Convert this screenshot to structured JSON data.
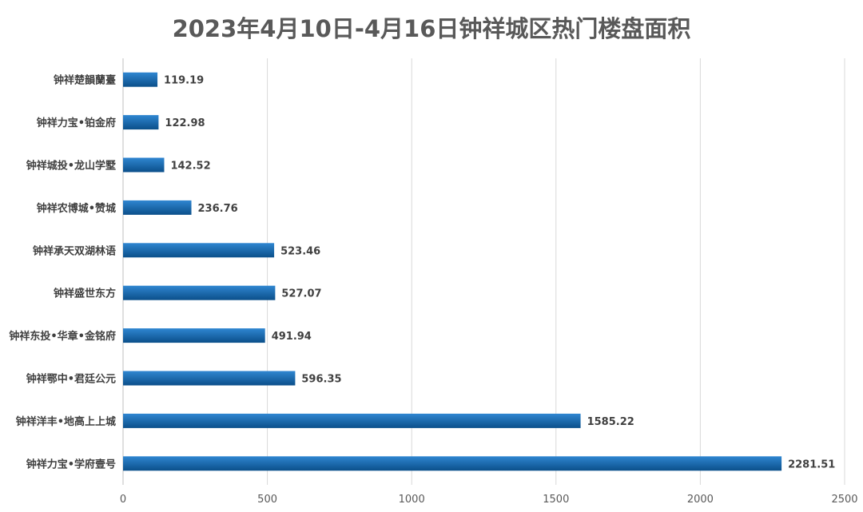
{
  "chart_data": {
    "type": "bar",
    "orientation": "horizontal",
    "title": "2023年4月10日-4月16日钟祥城区热门楼盘面积",
    "categories": [
      "钟祥楚韻蘭臺",
      "钟祥力宝•铂金府",
      "钟祥城投•龙山学墅",
      "钟祥农博城•赞城",
      "钟祥承天双湖林语",
      "钟祥盛世东方",
      "钟祥东投•华章•金铭府",
      "钟祥鄂中•君廷公元",
      "钟祥洋丰•地高上上城",
      "钟祥力宝•学府壹号"
    ],
    "values": [
      119.19,
      122.98,
      142.52,
      236.76,
      523.46,
      527.07,
      491.94,
      596.35,
      1585.22,
      2281.51
    ],
    "value_labels": [
      "119.19",
      "122.98",
      "142.52",
      "236.76",
      "523.46",
      "527.07",
      "491.94",
      "596.35",
      "1585.22",
      "2281.51"
    ],
    "xlim": [
      0,
      2500
    ],
    "xticks": [
      0,
      500,
      1000,
      1500,
      2000,
      2500
    ],
    "xtick_labels": [
      "0",
      "500",
      "1000",
      "1500",
      "2000",
      "2500"
    ],
    "grid": "vertical",
    "legend": "none",
    "bar_color_dark": "#0b4f8a",
    "bar_color_light": "#2f86d1"
  }
}
